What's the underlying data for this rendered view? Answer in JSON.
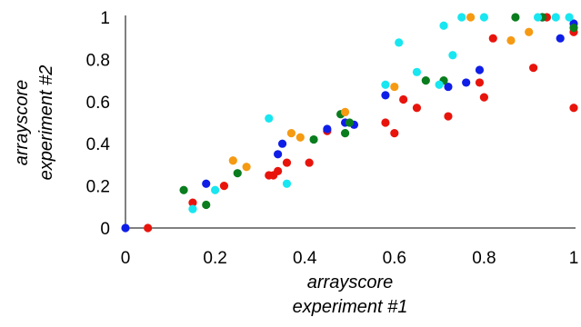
{
  "chart_data": {
    "type": "scatter",
    "xlabel": [
      "arrayscore",
      "experiment #1"
    ],
    "ylabel": [
      "arrayscore",
      "experiment #2"
    ],
    "xlim": [
      0,
      1
    ],
    "ylim": [
      0,
      1
    ],
    "x_ticks": [
      "0",
      "0.2",
      "0.4",
      "0.6",
      "0.8",
      "1"
    ],
    "y_ticks": [
      "0",
      "0.2",
      "0.4",
      "0.6",
      "0.8",
      "1"
    ],
    "grid": false,
    "colors": {
      "red": "#e8140c",
      "blue": "#0f1ee6",
      "green": "#0a7d1e",
      "orange": "#f59a12",
      "cyan": "#18e6f0"
    },
    "series": [
      {
        "color": "red",
        "points": [
          [
            0.05,
            0.0
          ],
          [
            0.15,
            0.12
          ],
          [
            0.22,
            0.2
          ],
          [
            0.32,
            0.25
          ],
          [
            0.33,
            0.25
          ],
          [
            0.34,
            0.27
          ],
          [
            0.36,
            0.31
          ],
          [
            0.41,
            0.31
          ],
          [
            0.45,
            0.46
          ],
          [
            0.58,
            0.5
          ],
          [
            0.6,
            0.45
          ],
          [
            0.62,
            0.61
          ],
          [
            0.65,
            0.57
          ],
          [
            0.72,
            0.53
          ],
          [
            0.8,
            0.62
          ],
          [
            0.79,
            0.69
          ],
          [
            0.82,
            0.9
          ],
          [
            0.91,
            0.76
          ],
          [
            1.0,
            0.57
          ],
          [
            1.0,
            0.93
          ],
          [
            0.94,
            1.0
          ]
        ]
      },
      {
        "color": "blue",
        "points": [
          [
            0.0,
            0.0
          ],
          [
            0.18,
            0.21
          ],
          [
            0.34,
            0.35
          ],
          [
            0.35,
            0.4
          ],
          [
            0.45,
            0.47
          ],
          [
            0.49,
            0.5
          ],
          [
            0.51,
            0.49
          ],
          [
            0.58,
            0.63
          ],
          [
            0.72,
            0.67
          ],
          [
            0.76,
            0.69
          ],
          [
            0.79,
            0.75
          ],
          [
            0.93,
            1.0
          ],
          [
            0.97,
            0.9
          ],
          [
            1.0,
            0.97
          ]
        ]
      },
      {
        "color": "green",
        "points": [
          [
            0.13,
            0.18
          ],
          [
            0.18,
            0.11
          ],
          [
            0.25,
            0.26
          ],
          [
            0.42,
            0.42
          ],
          [
            0.48,
            0.54
          ],
          [
            0.49,
            0.45
          ],
          [
            0.5,
            0.5
          ],
          [
            0.67,
            0.7
          ],
          [
            0.71,
            0.7
          ],
          [
            0.87,
            1.0
          ],
          [
            0.93,
            1.0
          ],
          [
            1.0,
            0.95
          ]
        ]
      },
      {
        "color": "orange",
        "points": [
          [
            0.24,
            0.32
          ],
          [
            0.27,
            0.29
          ],
          [
            0.37,
            0.45
          ],
          [
            0.39,
            0.43
          ],
          [
            0.49,
            0.55
          ],
          [
            0.6,
            0.67
          ],
          [
            0.77,
            1.0
          ],
          [
            0.86,
            0.89
          ],
          [
            0.9,
            0.93
          ]
        ]
      },
      {
        "color": "cyan",
        "points": [
          [
            0.15,
            0.09
          ],
          [
            0.2,
            0.18
          ],
          [
            0.32,
            0.52
          ],
          [
            0.36,
            0.21
          ],
          [
            0.58,
            0.68
          ],
          [
            0.61,
            0.88
          ],
          [
            0.65,
            0.74
          ],
          [
            0.7,
            0.68
          ],
          [
            0.71,
            0.96
          ],
          [
            0.73,
            0.82
          ],
          [
            0.75,
            1.0
          ],
          [
            0.8,
            1.0
          ],
          [
            0.92,
            1.0
          ],
          [
            0.96,
            1.0
          ],
          [
            0.99,
            1.0
          ]
        ]
      }
    ]
  }
}
